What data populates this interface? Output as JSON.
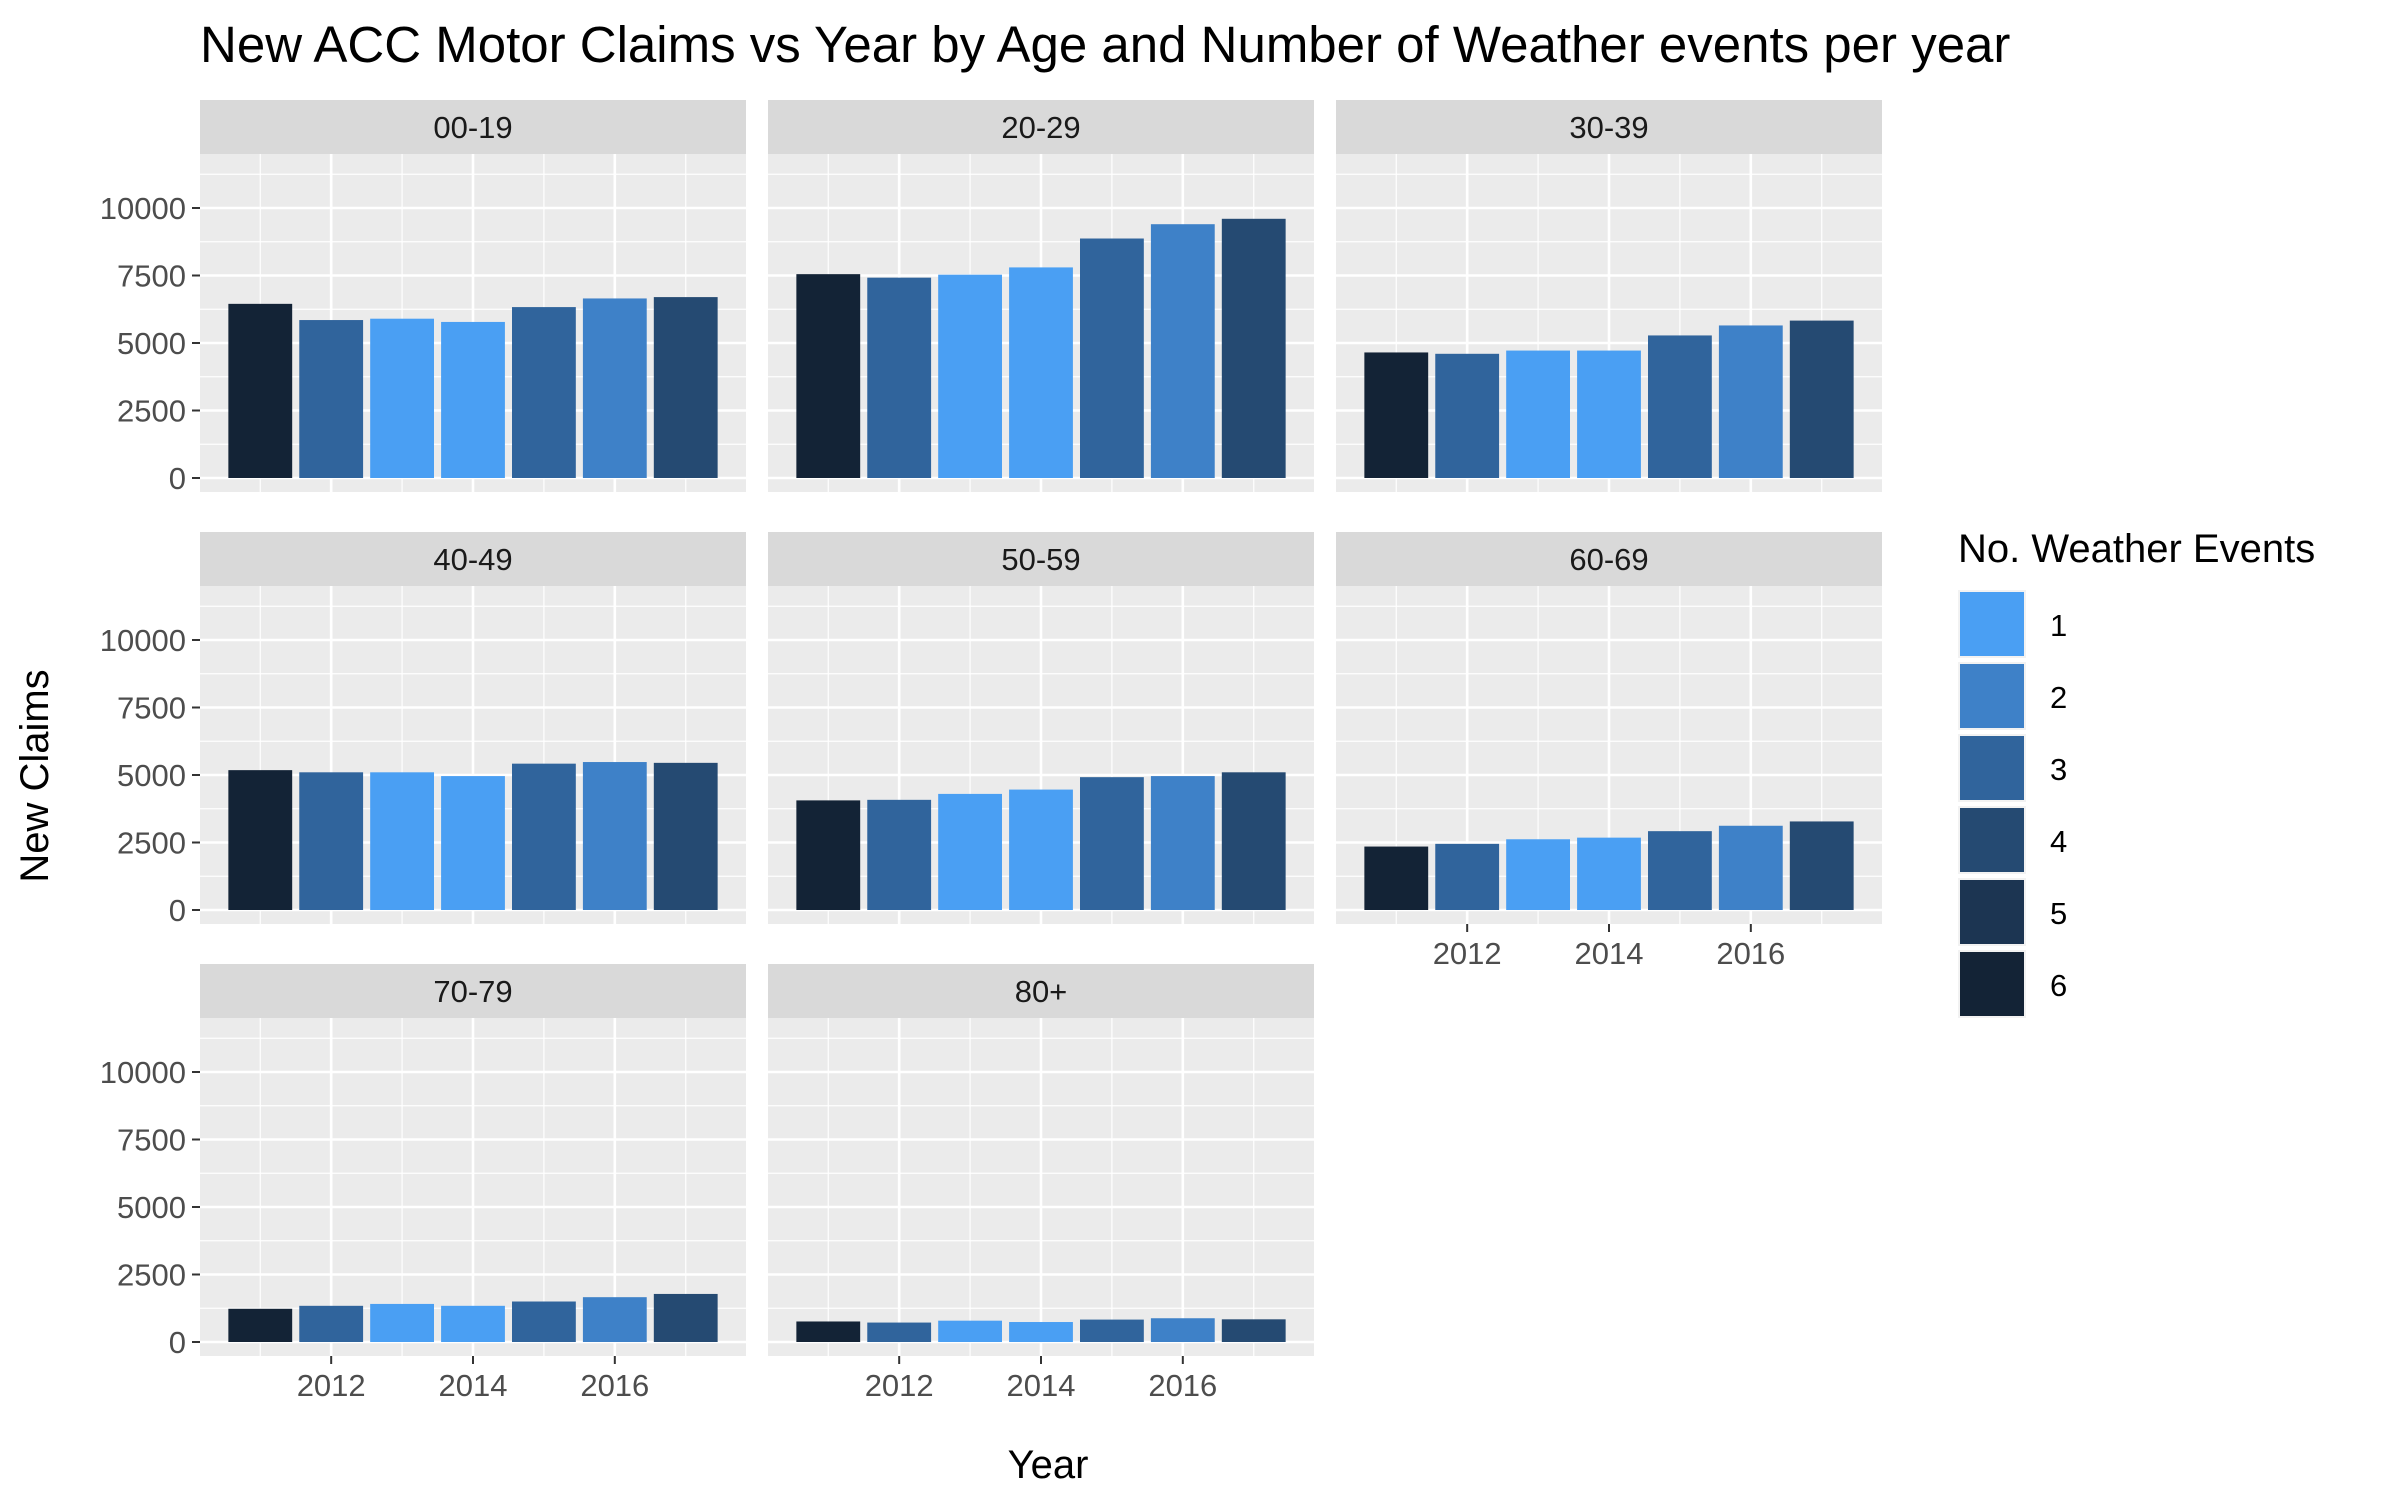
{
  "chart_data": {
    "type": "bar",
    "title": "New ACC Motor Claims vs Year by Age and Number of Weather events per year",
    "xlabel": "Year",
    "ylabel": "New Claims",
    "x": [
      2011,
      2012,
      2013,
      2014,
      2015,
      2016,
      2017
    ],
    "x_ticks": [
      "2012",
      "2014",
      "2016"
    ],
    "x_tick_values": [
      2012,
      2014,
      2016
    ],
    "ylim": [
      0,
      12000
    ],
    "y_ticks": [
      "0",
      "2500",
      "5000",
      "7500",
      "10000"
    ],
    "y_tick_values": [
      0,
      2500,
      5000,
      7500,
      10000
    ],
    "weather_events_by_year": [
      6,
      3,
      1,
      1,
      3,
      2,
      4
    ],
    "legend": {
      "title": "No. Weather Events",
      "position": "right",
      "entries": [
        {
          "label": "1",
          "color": "#4a9ff3"
        },
        {
          "label": "2",
          "color": "#3e81c8"
        },
        {
          "label": "3",
          "color": "#30649c"
        },
        {
          "label": "4",
          "color": "#254a72"
        },
        {
          "label": "5",
          "color": "#1c3552"
        },
        {
          "label": "6",
          "color": "#132336"
        }
      ]
    },
    "facets": [
      {
        "label": "00-19",
        "values": [
          6450,
          5850,
          5900,
          5780,
          6330,
          6650,
          6700
        ]
      },
      {
        "label": "20-29",
        "values": [
          7550,
          7420,
          7530,
          7800,
          8870,
          9400,
          9600
        ]
      },
      {
        "label": "30-39",
        "values": [
          4650,
          4600,
          4720,
          4720,
          5280,
          5650,
          5830
        ]
      },
      {
        "label": "40-49",
        "values": [
          5180,
          5100,
          5100,
          4960,
          5420,
          5480,
          5450
        ]
      },
      {
        "label": "50-59",
        "values": [
          4060,
          4080,
          4300,
          4460,
          4920,
          4960,
          5100
        ]
      },
      {
        "label": "60-69",
        "values": [
          2350,
          2450,
          2620,
          2680,
          2920,
          3120,
          3280
        ]
      },
      {
        "label": "70-79",
        "values": [
          1230,
          1340,
          1410,
          1340,
          1500,
          1660,
          1780
        ]
      },
      {
        "label": "80+",
        "values": [
          760,
          720,
          790,
          740,
          830,
          880,
          840
        ]
      }
    ]
  }
}
